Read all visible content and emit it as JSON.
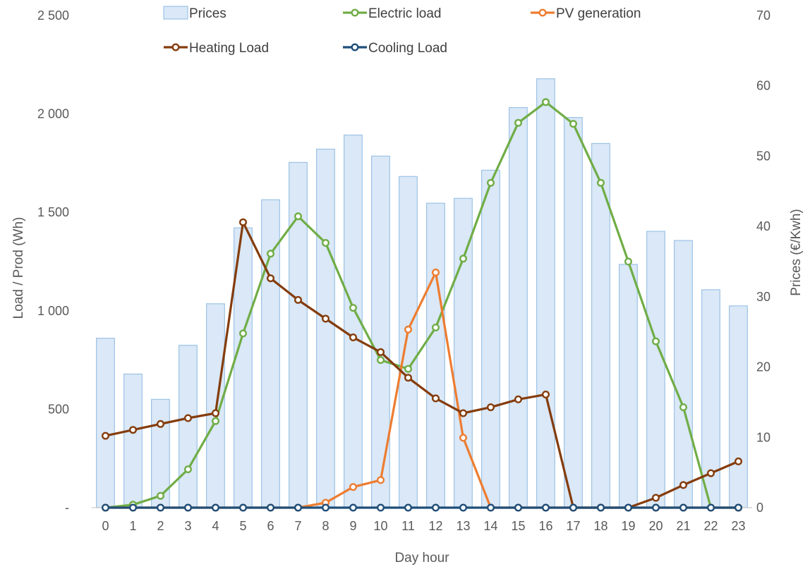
{
  "chart_data": {
    "type": "bar",
    "xlabel": "Day hour",
    "ylabel": "Load / Prod (Wh)",
    "y2label": "Prices (€/Kwh)",
    "categories": [
      "0",
      "1",
      "2",
      "3",
      "4",
      "5",
      "6",
      "7",
      "8",
      "9",
      "10",
      "11",
      "12",
      "13",
      "14",
      "15",
      "16",
      "17",
      "18",
      "19",
      "20",
      "21",
      "22",
      "23"
    ],
    "ylim": [
      0,
      2500
    ],
    "y2lim": [
      0,
      70
    ],
    "y_ticks": [
      "-",
      "500",
      "1 000",
      "1 500",
      "2 000",
      "2 500"
    ],
    "y_tick_values": [
      0,
      500,
      1000,
      1500,
      2000,
      2500
    ],
    "y2_ticks": [
      "0",
      "10",
      "20",
      "30",
      "40",
      "50",
      "60",
      "70"
    ],
    "y2_tick_values": [
      0,
      10,
      20,
      30,
      40,
      50,
      60,
      70
    ],
    "legend_position": "top",
    "series": [
      {
        "name": "Prices",
        "kind": "bar",
        "axis": "right",
        "color": "#dae8f7",
        "stroke": "#9dc3e6",
        "values": [
          24.1,
          19.0,
          15.4,
          23.1,
          29.0,
          39.8,
          43.8,
          49.1,
          51.0,
          53.0,
          50.0,
          47.1,
          43.3,
          44.0,
          48.0,
          56.9,
          61.0,
          55.5,
          51.8,
          34.6,
          39.3,
          38.0,
          31.0,
          28.7
        ]
      },
      {
        "name": "Electric load",
        "kind": "line",
        "axis": "left",
        "color": "#70ad47",
        "values": [
          0,
          15,
          60,
          195,
          440,
          885,
          1290,
          1480,
          1345,
          1015,
          750,
          705,
          915,
          1265,
          1650,
          1955,
          2060,
          1950,
          1650,
          1250,
          845,
          510,
          0,
          0
        ]
      },
      {
        "name": "PV generation",
        "kind": "line",
        "axis": "left",
        "color": "#ed7d31",
        "values": [
          0,
          0,
          0,
          0,
          0,
          0,
          0,
          0,
          25,
          105,
          140,
          905,
          1195,
          355,
          0,
          0,
          0,
          0,
          0,
          0,
          0,
          0,
          0,
          0
        ]
      },
      {
        "name": "Heating Load",
        "kind": "line",
        "axis": "left",
        "color": "#843c0c",
        "values": [
          365,
          395,
          425,
          455,
          480,
          1450,
          1165,
          1055,
          960,
          865,
          790,
          660,
          555,
          480,
          510,
          550,
          575,
          0,
          0,
          0,
          50,
          115,
          175,
          235
        ]
      },
      {
        "name": "Cooling Load",
        "kind": "line",
        "axis": "left",
        "color": "#1f4e79",
        "values": [
          0,
          0,
          0,
          0,
          0,
          0,
          0,
          0,
          0,
          0,
          0,
          0,
          0,
          0,
          0,
          0,
          0,
          0,
          0,
          0,
          0,
          0,
          0,
          0
        ]
      }
    ]
  }
}
